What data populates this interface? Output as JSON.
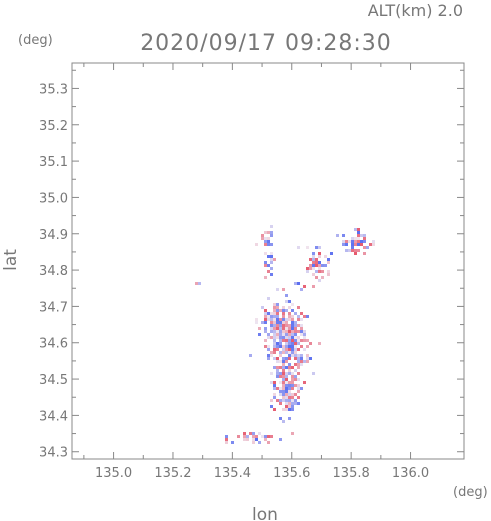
{
  "header": {
    "altitude_label": "ALT(km) 2.0",
    "timestamp": "2020/09/17 09:28:30"
  },
  "axes": {
    "x_unit": "(deg)",
    "y_unit": "(deg)",
    "x_label": "lon",
    "y_label": "lat",
    "x_range": [
      134.86,
      136.18
    ],
    "y_range": [
      34.28,
      35.37
    ],
    "x_ticks": [
      "135.0",
      "135.2",
      "135.4",
      "135.6",
      "135.8",
      "136.0"
    ],
    "y_ticks": [
      "34.3",
      "34.4",
      "34.5",
      "34.6",
      "34.7",
      "34.8",
      "34.9",
      "35.0",
      "35.1",
      "35.2",
      "35.3"
    ]
  },
  "colors": {
    "positive": "#e65a6e",
    "negative": "#5a6ef0",
    "neutral": "#f0e6f0",
    "axis": "#888888",
    "text": "#777777"
  },
  "chart_data": {
    "type": "heatmap",
    "title": "2020/09/17 09:28:30",
    "subtitle": "ALT(km) 2.0",
    "xlabel": "lon",
    "ylabel": "lat",
    "xlim": [
      134.86,
      136.18
    ],
    "ylim": [
      34.28,
      35.37
    ],
    "grid": false,
    "echo_regions": [
      {
        "lon": 135.58,
        "lat": 34.61,
        "sx": 0.055,
        "sy": 0.085,
        "density": 0.9
      },
      {
        "lon": 135.58,
        "lat": 34.47,
        "sx": 0.035,
        "sy": 0.05,
        "density": 0.85
      },
      {
        "lon": 135.53,
        "lat": 34.67,
        "sx": 0.03,
        "sy": 0.03,
        "density": 0.8
      },
      {
        "lon": 135.68,
        "lat": 34.82,
        "sx": 0.035,
        "sy": 0.04,
        "density": 0.45
      },
      {
        "lon": 135.81,
        "lat": 34.88,
        "sx": 0.04,
        "sy": 0.025,
        "density": 0.5
      },
      {
        "lon": 135.51,
        "lat": 34.89,
        "sx": 0.025,
        "sy": 0.025,
        "density": 0.3
      },
      {
        "lon": 135.52,
        "lat": 34.82,
        "sx": 0.015,
        "sy": 0.03,
        "density": 0.35
      },
      {
        "lon": 135.47,
        "lat": 34.345,
        "sx": 0.07,
        "sy": 0.01,
        "density": 0.45
      },
      {
        "lon": 135.38,
        "lat": 34.33,
        "sx": 0.015,
        "sy": 0.006,
        "density": 0.6
      },
      {
        "lon": 135.29,
        "lat": 34.77,
        "sx": 0.01,
        "sy": 0.006,
        "density": 0.7
      }
    ]
  }
}
